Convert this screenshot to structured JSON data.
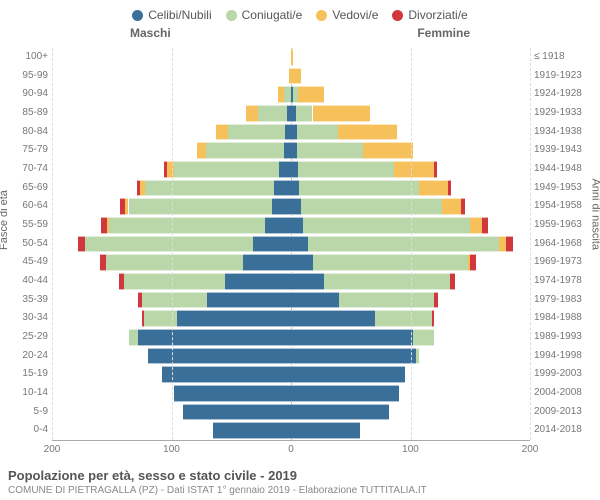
{
  "legend": [
    {
      "label": "Celibi/Nubili",
      "color": "#3a6f9a"
    },
    {
      "label": "Coniugati/e",
      "color": "#b9d7a8"
    },
    {
      "label": "Vedovi/e",
      "color": "#f6c15b"
    },
    {
      "label": "Divorziati/e",
      "color": "#d0383e"
    }
  ],
  "headers": {
    "left": "Maschi",
    "right": "Femmine"
  },
  "axis_titles": {
    "left": "Fasce di età",
    "right": "Anni di nascita"
  },
  "footer": {
    "title": "Popolazione per età, sesso e stato civile - 2019",
    "subtitle": "COMUNE DI PIETRAGALLA (PZ) - Dati ISTAT 1° gennaio 2019 - Elaborazione TUTTITALIA.IT"
  },
  "chart": {
    "type": "population-pyramid",
    "background_color": "#ffffff",
    "grid_color": "#dddddd",
    "axis_color": "#aaaaaa",
    "scale_max": 200,
    "xticks": [
      200,
      100,
      0,
      100,
      200
    ],
    "colors": {
      "single": "#3a6f9a",
      "married": "#b9d7a8",
      "widowed": "#f6c15b",
      "divorced": "#d0383e"
    },
    "rows": [
      {
        "age": "0-4",
        "years": "2014-2018",
        "m": {
          "single": 65,
          "married": 0,
          "widowed": 0,
          "divorced": 0
        },
        "f": {
          "single": 58,
          "married": 0,
          "widowed": 0,
          "divorced": 0
        }
      },
      {
        "age": "5-9",
        "years": "2009-2013",
        "m": {
          "single": 90,
          "married": 0,
          "widowed": 0,
          "divorced": 0
        },
        "f": {
          "single": 82,
          "married": 0,
          "widowed": 0,
          "divorced": 0
        }
      },
      {
        "age": "10-14",
        "years": "2004-2008",
        "m": {
          "single": 98,
          "married": 0,
          "widowed": 0,
          "divorced": 0
        },
        "f": {
          "single": 90,
          "married": 0,
          "widowed": 0,
          "divorced": 0
        }
      },
      {
        "age": "15-19",
        "years": "1999-2003",
        "m": {
          "single": 108,
          "married": 0,
          "widowed": 0,
          "divorced": 0
        },
        "f": {
          "single": 95,
          "married": 0,
          "widowed": 0,
          "divorced": 0
        }
      },
      {
        "age": "20-24",
        "years": "1994-1998",
        "m": {
          "single": 120,
          "married": 0,
          "widowed": 0,
          "divorced": 0
        },
        "f": {
          "single": 105,
          "married": 2,
          "widowed": 0,
          "divorced": 0
        }
      },
      {
        "age": "25-29",
        "years": "1989-1993",
        "m": {
          "single": 128,
          "married": 8,
          "widowed": 0,
          "divorced": 0
        },
        "f": {
          "single": 102,
          "married": 18,
          "widowed": 0,
          "divorced": 0
        }
      },
      {
        "age": "30-34",
        "years": "1984-1988",
        "m": {
          "single": 95,
          "married": 28,
          "widowed": 0,
          "divorced": 2
        },
        "f": {
          "single": 70,
          "married": 48,
          "widowed": 0,
          "divorced": 2
        }
      },
      {
        "age": "35-39",
        "years": "1979-1983",
        "m": {
          "single": 70,
          "married": 55,
          "widowed": 0,
          "divorced": 3
        },
        "f": {
          "single": 40,
          "married": 80,
          "widowed": 0,
          "divorced": 3
        }
      },
      {
        "age": "40-44",
        "years": "1974-1978",
        "m": {
          "single": 55,
          "married": 85,
          "widowed": 0,
          "divorced": 4
        },
        "f": {
          "single": 28,
          "married": 105,
          "widowed": 0,
          "divorced": 4
        }
      },
      {
        "age": "45-49",
        "years": "1969-1973",
        "m": {
          "single": 40,
          "married": 115,
          "widowed": 0,
          "divorced": 5
        },
        "f": {
          "single": 18,
          "married": 130,
          "widowed": 2,
          "divorced": 5
        }
      },
      {
        "age": "50-54",
        "years": "1964-1968",
        "m": {
          "single": 32,
          "married": 140,
          "widowed": 0,
          "divorced": 6
        },
        "f": {
          "single": 14,
          "married": 160,
          "widowed": 6,
          "divorced": 6
        }
      },
      {
        "age": "55-59",
        "years": "1959-1963",
        "m": {
          "single": 22,
          "married": 130,
          "widowed": 2,
          "divorced": 5
        },
        "f": {
          "single": 10,
          "married": 140,
          "widowed": 10,
          "divorced": 5
        }
      },
      {
        "age": "60-64",
        "years": "1954-1958",
        "m": {
          "single": 16,
          "married": 120,
          "widowed": 3,
          "divorced": 4
        },
        "f": {
          "single": 8,
          "married": 118,
          "widowed": 16,
          "divorced": 4
        }
      },
      {
        "age": "65-69",
        "years": "1949-1953",
        "m": {
          "single": 14,
          "married": 108,
          "widowed": 4,
          "divorced": 3
        },
        "f": {
          "single": 7,
          "married": 100,
          "widowed": 24,
          "divorced": 3
        }
      },
      {
        "age": "70-74",
        "years": "1944-1948",
        "m": {
          "single": 10,
          "married": 88,
          "widowed": 6,
          "divorced": 2
        },
        "f": {
          "single": 6,
          "married": 80,
          "widowed": 34,
          "divorced": 2
        }
      },
      {
        "age": "75-79",
        "years": "1939-1943",
        "m": {
          "single": 6,
          "married": 65,
          "widowed": 8,
          "divorced": 0
        },
        "f": {
          "single": 5,
          "married": 55,
          "widowed": 42,
          "divorced": 0
        }
      },
      {
        "age": "80-84",
        "years": "1934-1938",
        "m": {
          "single": 5,
          "married": 48,
          "widowed": 10,
          "divorced": 0
        },
        "f": {
          "single": 5,
          "married": 34,
          "widowed": 50,
          "divorced": 0
        }
      },
      {
        "age": "85-89",
        "years": "1929-1933",
        "m": {
          "single": 3,
          "married": 25,
          "widowed": 10,
          "divorced": 0
        },
        "f": {
          "single": 4,
          "married": 14,
          "widowed": 48,
          "divorced": 0
        }
      },
      {
        "age": "90-94",
        "years": "1924-1928",
        "m": {
          "single": 0,
          "married": 6,
          "widowed": 5,
          "divorced": 0
        },
        "f": {
          "single": 2,
          "married": 4,
          "widowed": 22,
          "divorced": 0
        }
      },
      {
        "age": "95-99",
        "years": "1919-1923",
        "m": {
          "single": 0,
          "married": 0,
          "widowed": 2,
          "divorced": 0
        },
        "f": {
          "single": 0,
          "married": 0,
          "widowed": 8,
          "divorced": 0
        }
      },
      {
        "age": "100+",
        "years": "≤ 1918",
        "m": {
          "single": 0,
          "married": 0,
          "widowed": 0,
          "divorced": 0
        },
        "f": {
          "single": 0,
          "married": 0,
          "widowed": 2,
          "divorced": 0
        }
      }
    ]
  }
}
